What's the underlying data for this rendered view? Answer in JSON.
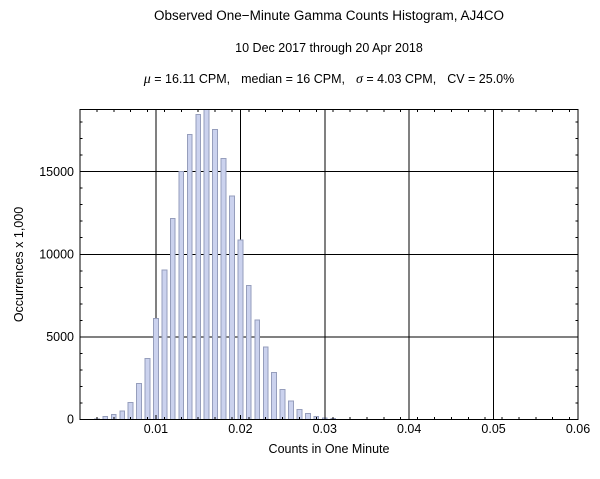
{
  "chart_data": {
    "type": "bar",
    "title": "Observed One−Minute Gamma Counts Histogram, AJ4CO",
    "subtitle": "10 Dec 2017 through 20 Apr 2018",
    "stats_line": {
      "mu_symbol": "μ",
      "mu_text": " = 16.11 CPM,",
      "median_text": "median = 16 CPM,",
      "sigma_symbol": "σ",
      "sigma_text": " = 4.03 CPM,",
      "cv_text": "CV = 25.0%"
    },
    "xlabel": "Counts in One Minute",
    "ylabel": "Occurrences x 1,000",
    "xlim": [
      1,
      60
    ],
    "ylim": [
      0,
      18760
    ],
    "grid": true,
    "x_major_ticks": [
      {
        "v": 10,
        "label": "0.01"
      },
      {
        "v": 20,
        "label": "0.02"
      },
      {
        "v": 30,
        "label": "0.03"
      },
      {
        "v": 40,
        "label": "0.04"
      },
      {
        "v": 50,
        "label": "0.05"
      },
      {
        "v": 60,
        "label": "0.06"
      }
    ],
    "x_minor_step": 2,
    "y_major_ticks": [
      {
        "v": 0,
        "label": "0"
      },
      {
        "v": 5000,
        "label": "5000"
      },
      {
        "v": 10000,
        "label": "10000"
      },
      {
        "v": 15000,
        "label": "15000"
      }
    ],
    "y_minor_step": 1000,
    "grid_x": [
      10,
      20,
      30,
      40,
      50,
      60
    ],
    "grid_y": [
      5000,
      10000,
      15000
    ],
    "bar_fill": "#cbd2ee",
    "bar_edge": "#969ebc",
    "frame_color": "#000000",
    "bars": [
      {
        "x": 3,
        "y": 40
      },
      {
        "x": 4,
        "y": 190
      },
      {
        "x": 5,
        "y": 290
      },
      {
        "x": 6,
        "y": 510
      },
      {
        "x": 7,
        "y": 1020
      },
      {
        "x": 8,
        "y": 2190
      },
      {
        "x": 9,
        "y": 3700
      },
      {
        "x": 10,
        "y": 6120
      },
      {
        "x": 11,
        "y": 9050
      },
      {
        "x": 12,
        "y": 12170
      },
      {
        "x": 13,
        "y": 15000
      },
      {
        "x": 14,
        "y": 17250
      },
      {
        "x": 15,
        "y": 18470
      },
      {
        "x": 16,
        "y": 18760
      },
      {
        "x": 17,
        "y": 17560
      },
      {
        "x": 18,
        "y": 15800
      },
      {
        "x": 19,
        "y": 13540
      },
      {
        "x": 20,
        "y": 10860
      },
      {
        "x": 21,
        "y": 8110
      },
      {
        "x": 22,
        "y": 6020
      },
      {
        "x": 23,
        "y": 4400
      },
      {
        "x": 24,
        "y": 2830
      },
      {
        "x": 25,
        "y": 1830
      },
      {
        "x": 26,
        "y": 1120
      },
      {
        "x": 27,
        "y": 620
      },
      {
        "x": 28,
        "y": 350
      },
      {
        "x": 29,
        "y": 170
      },
      {
        "x": 30,
        "y": 90
      },
      {
        "x": 31,
        "y": 50
      }
    ]
  }
}
